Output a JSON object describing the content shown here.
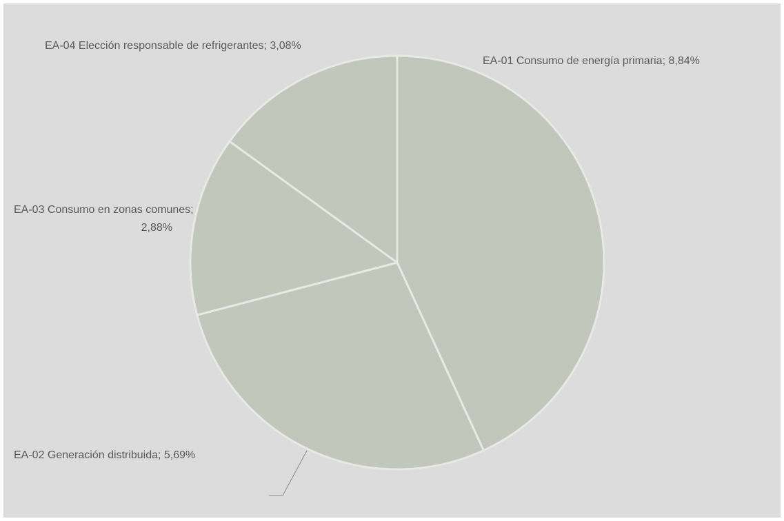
{
  "chart_data": {
    "type": "pie",
    "title": "",
    "slices": [
      {
        "label_lines": [
          "EA-01 Consumo de energía primaria; 8,84%"
        ],
        "name": "EA-01 Consumo de energía primaria",
        "value": 8.84
      },
      {
        "label_lines": [
          "EA-02 Generación distribuida; 5,69%"
        ],
        "name": "EA-02 Generación distribuida",
        "value": 5.69
      },
      {
        "label_lines": [
          "EA-03 Consumo en zonas comunes;",
          "2,88%"
        ],
        "name": "EA-03 Consumo en zonas comunes",
        "value": 2.88
      },
      {
        "label_lines": [
          "EA-04 Elección responsable de refrigerantes; 3,08%"
        ],
        "name": "EA-04 Elección responsable de refrigerantes",
        "value": 3.08
      }
    ],
    "start_angle_deg": 0,
    "direction": "clockwise",
    "legend": "none",
    "colors": {
      "background": "#dcdcdc",
      "slice_fill": "#c2c7bc",
      "slice_border": "#e8e8e6",
      "label_text": "#595959",
      "leader_line": "#8a8a8a"
    }
  }
}
